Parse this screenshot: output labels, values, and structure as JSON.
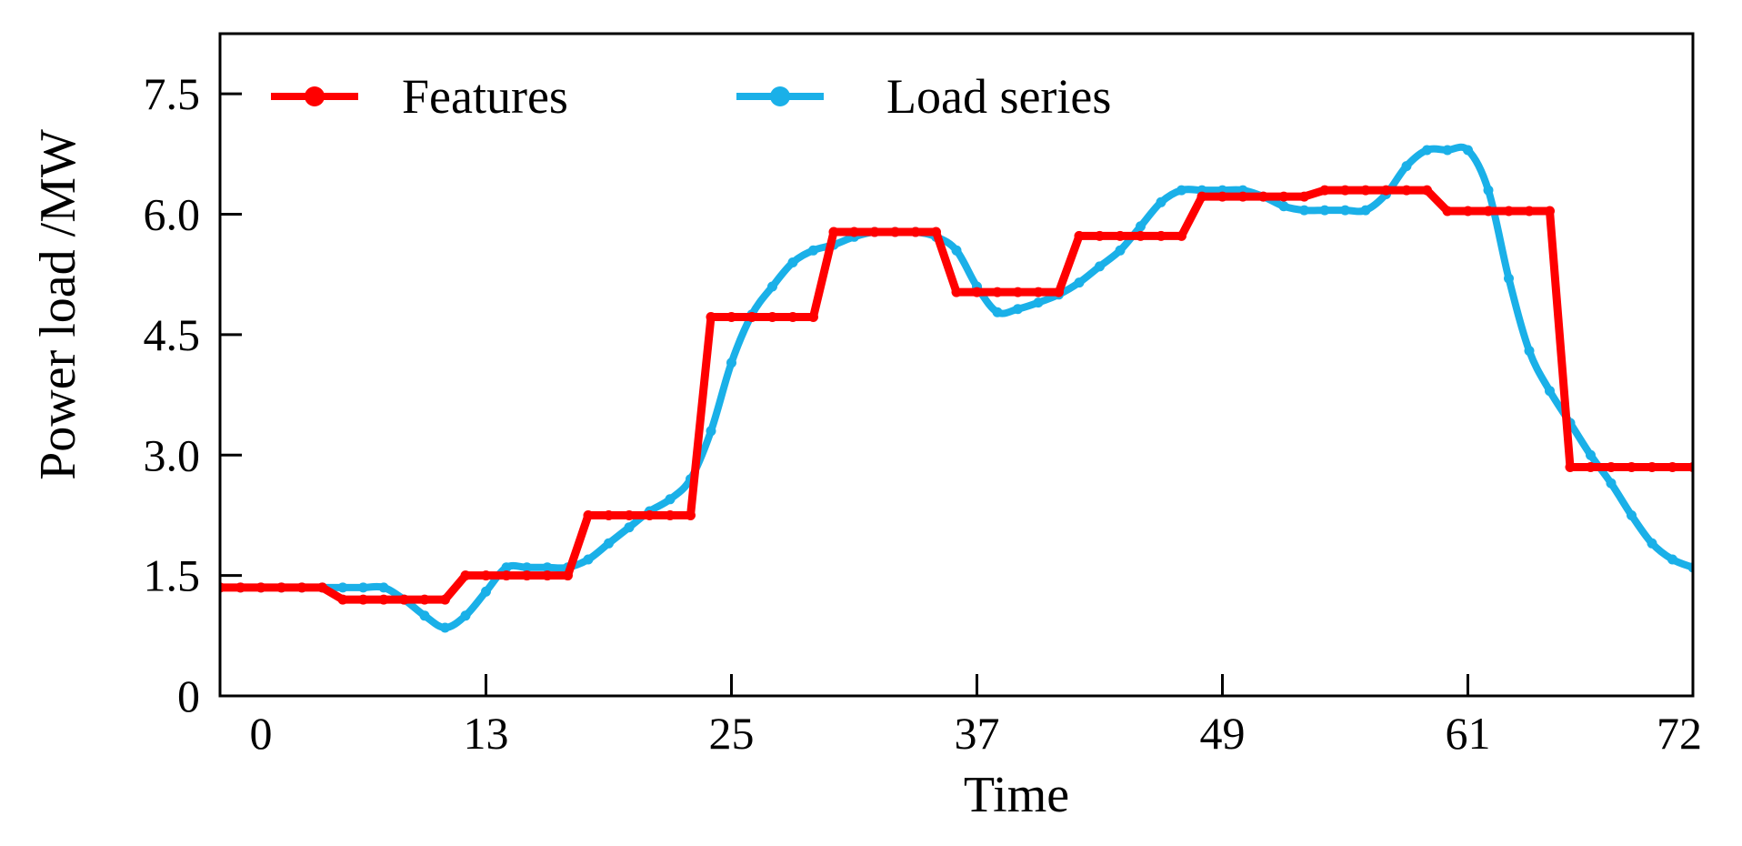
{
  "chart_data": {
    "type": "line",
    "xlabel": "Time",
    "ylabel": "Power load /MW",
    "xlim": [
      0,
      72
    ],
    "ylim": [
      0,
      8.25
    ],
    "x_ticks": [
      0,
      13,
      25,
      37,
      49,
      61,
      72
    ],
    "x_tick_labels": [
      "0",
      "13",
      "25",
      "37",
      "49",
      "61",
      "72"
    ],
    "y_ticks": [
      0,
      1.5,
      3.0,
      4.5,
      6.0,
      7.5
    ],
    "y_tick_labels": [
      "0",
      "1.5",
      "3.0",
      "4.5",
      "6.0",
      "7.5"
    ],
    "grid": false,
    "legend": "top-left",
    "series": [
      {
        "name": "Features",
        "color": "#ff0000",
        "marker": "circle",
        "x": [
          0,
          1,
          2,
          3,
          4,
          5,
          6,
          7,
          8,
          9,
          10,
          11,
          12,
          13,
          14,
          15,
          16,
          17,
          18,
          19,
          20,
          21,
          22,
          23,
          24,
          25,
          26,
          27,
          28,
          29,
          30,
          31,
          32,
          33,
          34,
          35,
          36,
          37,
          38,
          39,
          40,
          41,
          42,
          43,
          44,
          45,
          46,
          47,
          48,
          49,
          50,
          51,
          52,
          53,
          54,
          55,
          56,
          57,
          58,
          59,
          60,
          61,
          62,
          63,
          64,
          65,
          66,
          67,
          68,
          69,
          70,
          71,
          72
        ],
        "y": [
          1.35,
          1.35,
          1.35,
          1.35,
          1.35,
          1.35,
          1.2,
          1.2,
          1.2,
          1.2,
          1.2,
          1.2,
          1.5,
          1.5,
          1.5,
          1.5,
          1.5,
          1.5,
          2.25,
          2.25,
          2.25,
          2.25,
          2.25,
          2.25,
          4.72,
          4.72,
          4.72,
          4.72,
          4.72,
          4.72,
          5.78,
          5.78,
          5.78,
          5.78,
          5.78,
          5.78,
          5.03,
          5.03,
          5.03,
          5.03,
          5.03,
          5.03,
          5.73,
          5.73,
          5.73,
          5.73,
          5.73,
          5.73,
          6.22,
          6.22,
          6.22,
          6.22,
          6.22,
          6.22,
          6.3,
          6.3,
          6.3,
          6.3,
          6.3,
          6.3,
          6.04,
          6.04,
          6.04,
          6.04,
          6.04,
          6.04,
          2.85,
          2.85,
          2.85,
          2.85,
          2.85,
          2.85,
          2.85
        ]
      },
      {
        "name": "Load series",
        "color": "#1ab0e8",
        "marker": "circle",
        "x": [
          0,
          1,
          2,
          3,
          4,
          5,
          6,
          7,
          8,
          9,
          10,
          11,
          12,
          13,
          14,
          15,
          16,
          17,
          18,
          19,
          20,
          21,
          22,
          23,
          24,
          25,
          26,
          27,
          28,
          29,
          30,
          31,
          32,
          33,
          34,
          35,
          36,
          37,
          38,
          39,
          40,
          41,
          42,
          43,
          44,
          45,
          46,
          47,
          48,
          49,
          50,
          51,
          52,
          53,
          54,
          55,
          56,
          57,
          58,
          59,
          60,
          61,
          62,
          63,
          64,
          65,
          66,
          67,
          68,
          69,
          70,
          71,
          72
        ],
        "y": [
          1.35,
          1.35,
          1.35,
          1.35,
          1.35,
          1.35,
          1.35,
          1.35,
          1.35,
          1.2,
          1.0,
          0.85,
          1.0,
          1.3,
          1.6,
          1.6,
          1.6,
          1.6,
          1.7,
          1.9,
          2.1,
          2.3,
          2.45,
          2.7,
          3.3,
          4.15,
          4.75,
          5.1,
          5.4,
          5.55,
          5.62,
          5.72,
          5.78,
          5.78,
          5.78,
          5.72,
          5.55,
          5.1,
          4.78,
          4.82,
          4.9,
          5.0,
          5.15,
          5.35,
          5.55,
          5.85,
          6.15,
          6.3,
          6.3,
          6.3,
          6.3,
          6.22,
          6.1,
          6.05,
          6.05,
          6.05,
          6.05,
          6.25,
          6.6,
          6.8,
          6.8,
          6.8,
          6.3,
          5.2,
          4.3,
          3.8,
          3.4,
          3.0,
          2.65,
          2.25,
          1.9,
          1.7,
          1.6
        ]
      }
    ]
  }
}
